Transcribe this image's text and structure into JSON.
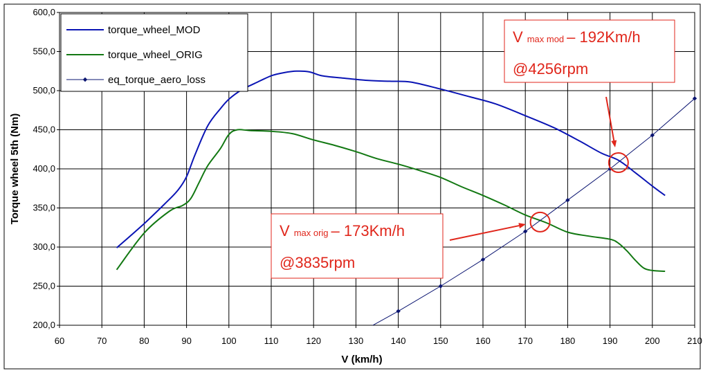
{
  "chart_data": {
    "type": "line",
    "title": "",
    "xlabel": "V (km/h)",
    "ylabel": "Torque wheel 5th (Nm)",
    "xlim": [
      60,
      210
    ],
    "ylim": [
      200,
      600
    ],
    "x_ticks": [
      "60",
      "70",
      "80",
      "90",
      "100",
      "110",
      "120",
      "130",
      "140",
      "150",
      "160",
      "170",
      "180",
      "190",
      "200",
      "210"
    ],
    "y_ticks": [
      "200,0",
      "250,0",
      "300,0",
      "350,0",
      "400,0",
      "450,0",
      "500,0",
      "550,0",
      "600,0"
    ],
    "grid": true,
    "legend_position": "top-left",
    "series": [
      {
        "name": "torque_wheel_MOD",
        "color": "#0a14b4",
        "markers": false,
        "x": [
          73.5,
          80,
          85,
          88,
          90,
          92,
          95,
          98,
          100,
          103,
          106,
          110,
          113,
          116,
          119,
          122,
          127,
          133,
          138,
          143,
          150,
          157,
          163,
          170,
          177,
          183,
          188,
          192,
          196,
          200,
          203
        ],
        "y": [
          299,
          330,
          356,
          373,
          390,
          418,
          455,
          477,
          489,
          501,
          509,
          519,
          523,
          525,
          524,
          519,
          516,
          513,
          512,
          511,
          502,
          492,
          483,
          468,
          452,
          435,
          420,
          411,
          395,
          378,
          366
        ]
      },
      {
        "name": "torque_wheel_ORIG",
        "color": "#127812",
        "markers": false,
        "x": [
          73.5,
          80,
          86,
          89,
          91,
          93,
          95,
          98,
          100,
          102,
          105,
          110,
          115,
          120,
          125,
          130,
          135,
          140,
          145,
          150,
          155,
          160,
          165,
          170,
          175,
          180,
          185,
          190,
          192,
          194,
          196,
          198,
          200,
          203
        ],
        "y": [
          271,
          318,
          346,
          353,
          362,
          383,
          404,
          426,
          444,
          450,
          449,
          448,
          445,
          437,
          430,
          422,
          413,
          406,
          398,
          389,
          377,
          366,
          354,
          341,
          331,
          319,
          314,
          310,
          305,
          295,
          283,
          273,
          270,
          269
        ]
      },
      {
        "name": "eq_torque_aero_loss",
        "color": "#0a1470",
        "markers": true,
        "x": [
          133,
          140,
          150,
          160,
          170,
          180,
          190,
          200,
          210
        ],
        "y": [
          197,
          218,
          250,
          284,
          320,
          360,
          400,
          443,
          490
        ]
      }
    ],
    "annotations": [
      {
        "v_label": "V",
        "sub_label": "max mod",
        "value_label": "– 192Km/h",
        "rpm_label": "@4256rpm",
        "target_x": 192,
        "target_y": 408
      },
      {
        "v_label": "V",
        "sub_label": "max orig",
        "value_label": "– 173Km/h",
        "rpm_label": "@3835rpm",
        "target_x": 173.5,
        "target_y": 332
      }
    ],
    "annotation_color": "#e0261b"
  }
}
